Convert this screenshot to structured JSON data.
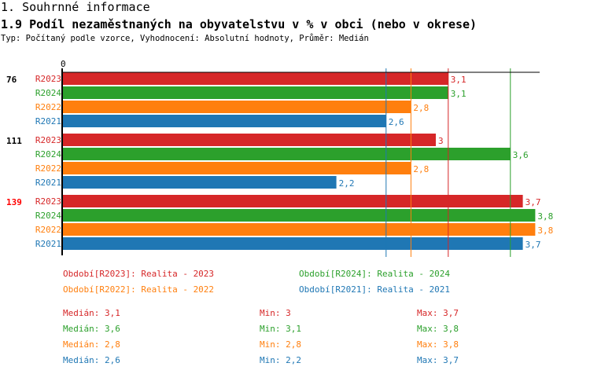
{
  "header": {
    "section": "1. Souhrnné informace",
    "title": "1.9 Podíl nezaměstnaných na obyvatelstvu v % v obci (nebo v okrese)",
    "subtitle": "Typ: Počítaný podle vzorce, Vyhodnocení: Absolutní hodnoty, Průměr: Medián"
  },
  "chart_data": {
    "type": "bar",
    "orientation": "horizontal",
    "xlim": [
      0,
      3.8
    ],
    "x_tick_labels": [
      "0"
    ],
    "categories": [
      "76",
      "111",
      "139"
    ],
    "highlighted_category": "139",
    "series": [
      {
        "name": "R2023",
        "color": "#d62728",
        "values": [
          3.1,
          3,
          3.7
        ],
        "labels": [
          "3,1",
          "3",
          "3,7"
        ],
        "median": 3.1
      },
      {
        "name": "R2024",
        "color": "#2ca02c",
        "values": [
          3.1,
          3.6,
          3.8
        ],
        "labels": [
          "3,1",
          "3,6",
          "3,8"
        ],
        "median": 3.6
      },
      {
        "name": "R2022",
        "color": "#ff7f0e",
        "values": [
          2.8,
          2.8,
          3.8
        ],
        "labels": [
          "2,8",
          "2,8",
          "3,8"
        ],
        "median": 2.8
      },
      {
        "name": "R2021",
        "color": "#1f77b4",
        "values": [
          2.6,
          2.2,
          3.7
        ],
        "labels": [
          "2,6",
          "2,2",
          "3,7"
        ],
        "median": 2.6
      }
    ],
    "legend": [
      {
        "text": "Období[R2023]: Realita - 2023",
        "color": "#d62728"
      },
      {
        "text": "Období[R2024]: Realita - 2024",
        "color": "#2ca02c"
      },
      {
        "text": "Období[R2022]: Realita - 2022",
        "color": "#ff7f0e"
      },
      {
        "text": "Období[R2021]: Realita - 2021",
        "color": "#1f77b4"
      }
    ],
    "stats": [
      {
        "median": "Medián: 3,1",
        "min": "Min: 3",
        "max": "Max: 3,7",
        "color": "#d62728"
      },
      {
        "median": "Medián: 3,6",
        "min": "Min: 3,1",
        "max": "Max: 3,8",
        "color": "#2ca02c"
      },
      {
        "median": "Medián: 2,8",
        "min": "Min: 2,8",
        "max": "Max: 3,8",
        "color": "#ff7f0e"
      },
      {
        "median": "Medián: 2,6",
        "min": "Min: 2,2",
        "max": "Max: 3,7",
        "color": "#1f77b4"
      }
    ]
  }
}
